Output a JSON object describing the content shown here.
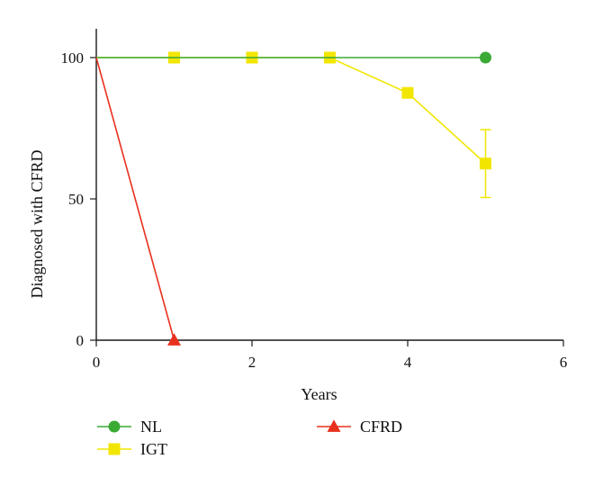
{
  "chart_data": {
    "type": "line",
    "title": "",
    "xlabel": "Years",
    "ylabel": "Diagnosed with CFRD",
    "xlim": [
      0,
      6
    ],
    "ylim": [
      0,
      100
    ],
    "xticks": [
      0,
      2,
      4,
      6
    ],
    "yticks": [
      0,
      50,
      100
    ],
    "grid": false,
    "legend_position": "bottom",
    "series": [
      {
        "name": "NL",
        "color": "#3aaa35",
        "marker": "circle",
        "x": [
          0,
          5
        ],
        "y": [
          100,
          100
        ],
        "marker_x": [
          5
        ],
        "marker_y": [
          100
        ],
        "error": []
      },
      {
        "name": "IGT",
        "color": "#f2e600",
        "marker": "square",
        "x": [
          0,
          1,
          2,
          3,
          4,
          5
        ],
        "y": [
          100,
          100,
          100,
          100,
          87.5,
          62.5
        ],
        "marker_x": [
          1,
          2,
          3,
          4,
          5
        ],
        "marker_y": [
          100,
          100,
          100,
          87.5,
          62.5
        ],
        "error": [
          0,
          0,
          0,
          0,
          12,
          17
        ]
      },
      {
        "name": "CFRD",
        "color": "#e8301e",
        "marker": "triangle",
        "x": [
          0,
          1
        ],
        "y": [
          100,
          0
        ],
        "marker_x": [
          1
        ],
        "marker_y": [
          0
        ],
        "error": []
      }
    ]
  }
}
